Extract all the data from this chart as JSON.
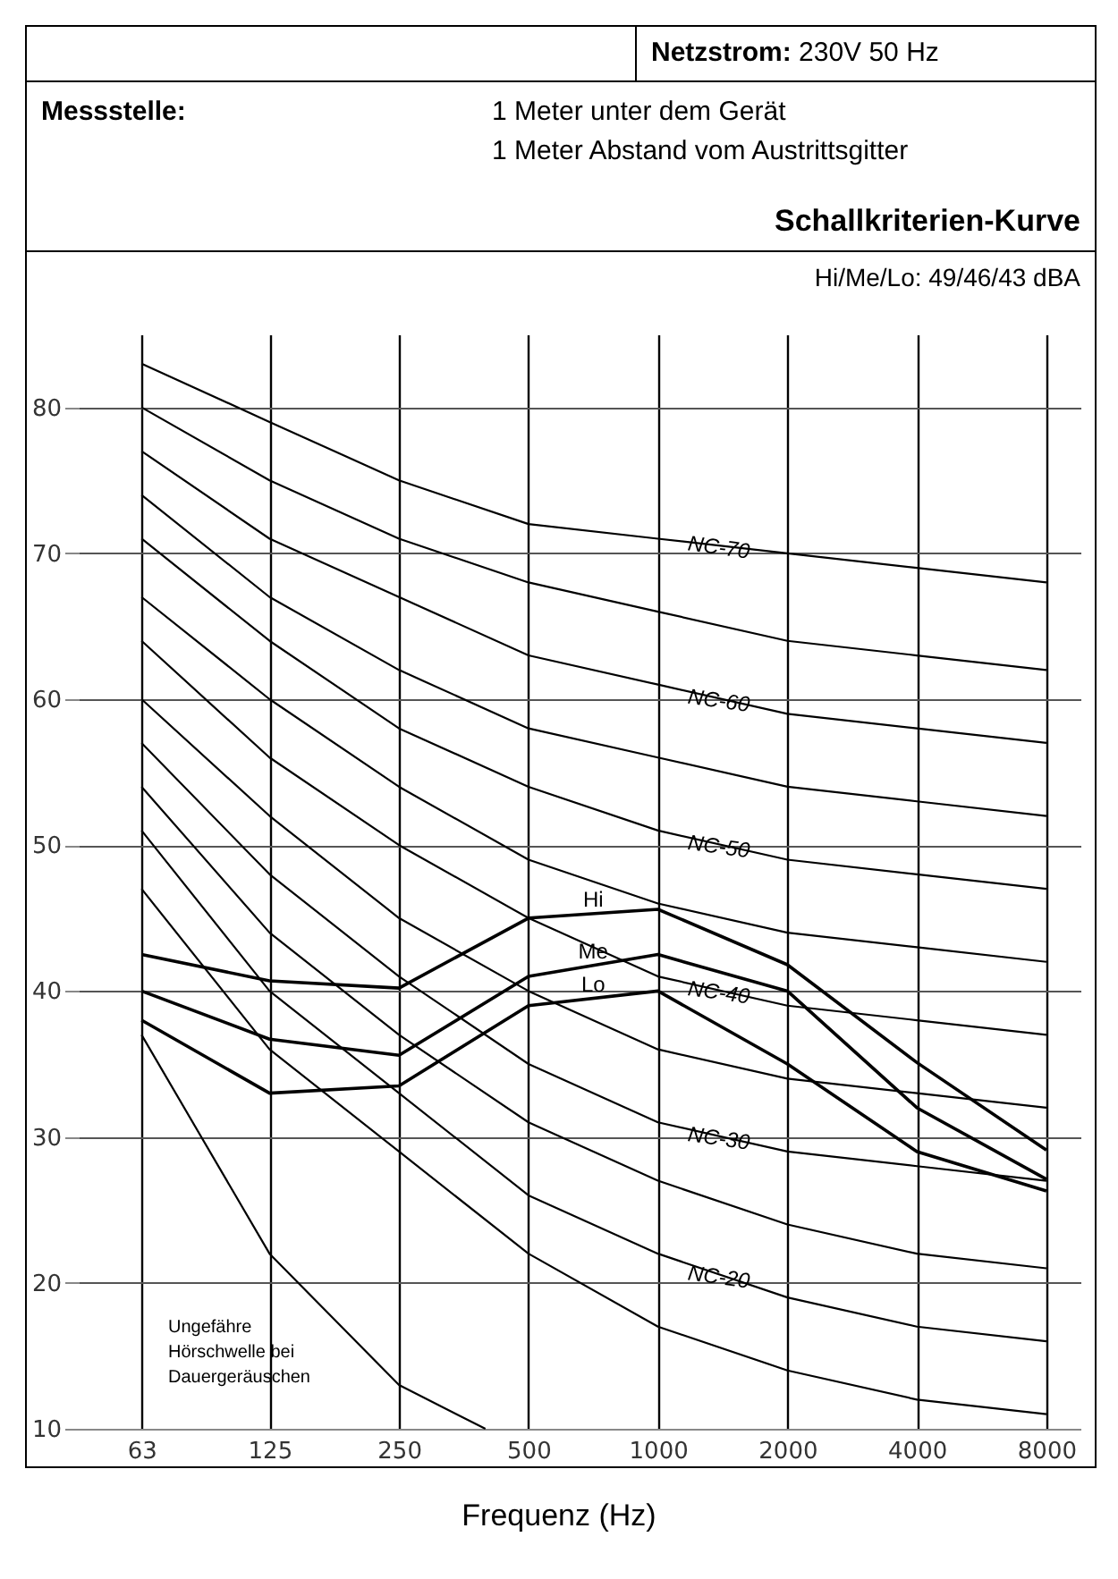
{
  "chart_data": {
    "type": "line",
    "title": "Schallkriterien-Kurve",
    "xlabel": "Frequenz (Hz)",
    "annotations": [
      "Netzstrom: 230V 50 Hz",
      "Messstelle:",
      "1 Meter unter dem Gerät",
      "1 Meter Abstand vom Austrittsgitter",
      "Hi/Me/Lo: 49/46/43 dBA",
      "Ungefähre\nHörschwelle bei\nDauergeräuschen"
    ],
    "x": [
      63,
      125,
      250,
      500,
      1000,
      2000,
      4000,
      8000
    ],
    "series": [
      {
        "color": "#000000",
        "values": [
          47,
          36,
          29,
          22,
          17,
          14,
          12,
          11
        ]
      },
      {
        "name": "NC-20",
        "color": "#000000",
        "values": [
          51,
          40,
          33,
          26,
          22,
          19,
          17,
          16
        ]
      },
      {
        "color": "#000000",
        "values": [
          54,
          44,
          37,
          31,
          27,
          24,
          22,
          21
        ]
      },
      {
        "name": "NC-30",
        "color": "#000000",
        "values": [
          57,
          48,
          41,
          35,
          31,
          29,
          28,
          27
        ]
      },
      {
        "color": "#000000",
        "values": [
          60,
          52,
          45,
          40,
          36,
          34,
          33,
          32
        ]
      },
      {
        "name": "NC-40",
        "color": "#000000",
        "values": [
          64,
          56,
          50,
          45,
          41,
          39,
          38,
          37
        ]
      },
      {
        "color": "#000000",
        "values": [
          67,
          60,
          54,
          49,
          46,
          44,
          43,
          42
        ]
      },
      {
        "name": "NC-50",
        "color": "#000000",
        "values": [
          71,
          64,
          58,
          54,
          51,
          49,
          48,
          47
        ]
      },
      {
        "color": "#000000",
        "values": [
          74,
          67,
          62,
          58,
          56,
          54,
          53,
          52
        ]
      },
      {
        "name": "NC-60",
        "color": "#000000",
        "values": [
          77,
          71,
          67,
          63,
          61,
          59,
          58,
          57
        ]
      },
      {
        "color": "#000000",
        "values": [
          80,
          75,
          71,
          68,
          66,
          64,
          63,
          62
        ]
      },
      {
        "name": "NC-70",
        "color": "#000000",
        "values": [
          83,
          79,
          75,
          72,
          71,
          70,
          69,
          68
        ]
      },
      {
        "name": "Hi",
        "color": "#000000",
        "values": [
          42.5,
          40.7,
          40.2,
          45,
          45.6,
          41.8,
          35.1,
          29.1
        ]
      },
      {
        "name": "Me",
        "color": "#000000",
        "values": [
          40,
          36.7,
          35.6,
          41,
          42.5,
          40,
          32,
          27.1
        ]
      },
      {
        "name": "Lo",
        "color": "#000000",
        "values": [
          38,
          33,
          33.5,
          39,
          40,
          35,
          29,
          26.3
        ]
      },
      {
        "color": "#000000",
        "x": [
          63,
          125,
          250,
          397
        ],
        "values": [
          37,
          22,
          13,
          10
        ]
      }
    ],
    "log": "x",
    "xlim": [
      45,
      9600
    ],
    "xticks": [
      63,
      125,
      250,
      500,
      1000,
      2000,
      4000,
      8000
    ],
    "ylim": [
      10,
      85
    ],
    "yticks": [
      10,
      20,
      30,
      40,
      50,
      60,
      70,
      80
    ],
    "grid": true,
    "marker": "none",
    "line_style": "solid"
  }
}
